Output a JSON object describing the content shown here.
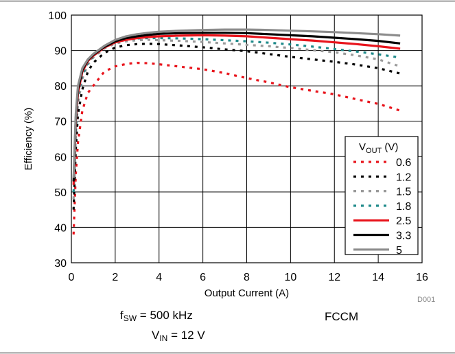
{
  "chart_data": {
    "type": "line",
    "xlabel": "Output Current (A)",
    "ylabel": "Efficiency (%)",
    "xlim": [
      0,
      16
    ],
    "ylim": [
      30,
      100
    ],
    "xticks": [
      "0",
      "2",
      "4",
      "6",
      "8",
      "10",
      "12",
      "14",
      "16"
    ],
    "yticks": [
      "30",
      "40",
      "50",
      "60",
      "70",
      "80",
      "90",
      "100"
    ],
    "grid": true,
    "legend": {
      "title_main": "V",
      "title_sub": "OUT",
      "title_unit": " (V)",
      "placement": "bottom-right"
    },
    "figure_id": "D001",
    "series": [
      {
        "name": "0.6",
        "color": "#e8141c",
        "style": "dotted",
        "x": [
          0.1,
          0.2,
          0.3,
          0.5,
          0.75,
          1,
          1.5,
          2,
          2.5,
          3,
          3.5,
          4,
          5,
          6,
          7,
          8,
          9,
          10,
          11,
          12,
          13,
          14,
          15
        ],
        "y": [
          38,
          55,
          64,
          73,
          78,
          80,
          84,
          85.5,
          86.2,
          86.5,
          86.4,
          86.1,
          85.4,
          84.7,
          83.6,
          82.2,
          81,
          79.6,
          78.6,
          77.6,
          76.2,
          74.9,
          73
        ]
      },
      {
        "name": "1.2",
        "color": "#000000",
        "style": "dotted",
        "x": [
          0.1,
          0.2,
          0.3,
          0.5,
          0.75,
          1,
          1.5,
          2,
          2.5,
          3,
          3.5,
          4,
          5,
          6,
          7,
          8,
          9,
          10,
          11,
          12,
          13,
          14,
          15
        ],
        "y": [
          45,
          62,
          72,
          79,
          84,
          86.5,
          89.3,
          90.8,
          91.5,
          91.8,
          91.9,
          91.8,
          91.4,
          90.9,
          90.3,
          89.8,
          89,
          88.2,
          87.5,
          86.8,
          86,
          85,
          83.5
        ]
      },
      {
        "name": "1.5",
        "color": "#9a9a9a",
        "style": "dotted",
        "x": [
          0.1,
          0.2,
          0.3,
          0.5,
          0.75,
          1,
          1.5,
          2,
          2.5,
          3,
          3.5,
          4,
          5,
          6,
          7,
          8,
          9,
          10,
          11,
          12,
          13,
          14,
          15
        ],
        "y": [
          48,
          66,
          75,
          82,
          86,
          88,
          90.5,
          92,
          92.6,
          92.9,
          93,
          92.9,
          92.7,
          92.4,
          92,
          91.6,
          91.2,
          90.7,
          90.1,
          89.5,
          88.6,
          87.5,
          85.5
        ]
      },
      {
        "name": "1.8",
        "color": "#1e8a8a",
        "style": "dotted",
        "x": [
          0.1,
          0.2,
          0.3,
          0.5,
          0.75,
          1,
          1.5,
          2,
          2.5,
          3,
          3.5,
          4,
          5,
          6,
          7,
          8,
          9,
          10,
          11,
          12,
          13,
          14,
          15
        ],
        "y": [
          50,
          68,
          77,
          83,
          86.5,
          88.3,
          91,
          92.5,
          93.1,
          93.4,
          93.5,
          93.5,
          93.4,
          93.2,
          92.9,
          92.6,
          92.2,
          91.7,
          91.1,
          90.4,
          89.7,
          88.9,
          88
        ]
      },
      {
        "name": "2.5",
        "color": "#e8141c",
        "style": "solid",
        "x": [
          0.1,
          0.2,
          0.3,
          0.5,
          0.75,
          1,
          1.5,
          2,
          2.5,
          3,
          3.5,
          4,
          5,
          6,
          7,
          8,
          9,
          10,
          11,
          12,
          13,
          14,
          15
        ],
        "y": [
          52,
          70,
          78,
          84,
          87,
          88.5,
          90.8,
          92.3,
          93,
          93.5,
          93.8,
          94,
          94.2,
          94.3,
          94.2,
          94,
          93.6,
          93.2,
          92.8,
          92.3,
          91.8,
          91.2,
          90.5
        ]
      },
      {
        "name": "3.3",
        "color": "#000000",
        "style": "solid",
        "x": [
          0.1,
          0.2,
          0.3,
          0.5,
          0.75,
          1,
          1.5,
          2,
          2.5,
          3,
          3.5,
          4,
          5,
          6,
          7,
          8,
          9,
          10,
          11,
          12,
          13,
          14,
          15
        ],
        "y": [
          53,
          71,
          79,
          84.5,
          87.3,
          88.8,
          91,
          92.6,
          93.5,
          94,
          94.4,
          94.7,
          94.9,
          95,
          95,
          94.9,
          94.6,
          94.3,
          94,
          93.6,
          93.2,
          92.7,
          92
        ]
      },
      {
        "name": "5",
        "color": "#8c8c8c",
        "style": "solid",
        "x": [
          0.1,
          0.2,
          0.3,
          0.5,
          0.75,
          1,
          1.5,
          2,
          2.5,
          3,
          3.5,
          4,
          5,
          6,
          7,
          8,
          9,
          10,
          11,
          12,
          13,
          14,
          15
        ],
        "y": [
          54,
          72,
          80,
          85,
          87.5,
          89,
          91.3,
          93,
          94,
          94.6,
          95,
          95.3,
          95.6,
          95.8,
          95.9,
          95.9,
          95.8,
          95.6,
          95.4,
          95.2,
          94.9,
          94.6,
          94.2
        ]
      }
    ]
  },
  "conditions": {
    "fsw_main": "f",
    "fsw_sub": "SW",
    "fsw_value": " = 500 kHz",
    "mode": "FCCM",
    "vin_main": "V",
    "vin_sub": "IN",
    "vin_value": " = 12 V"
  }
}
